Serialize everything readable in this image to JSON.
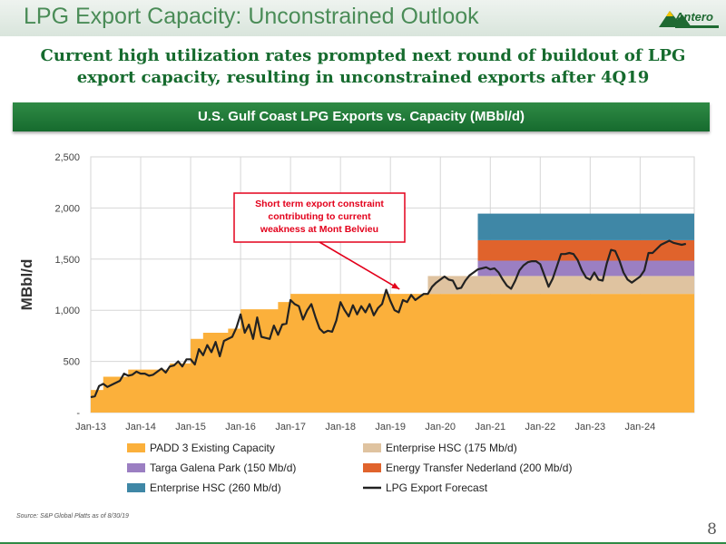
{
  "slide": {
    "title": "LPG Export Capacity: Unconstrained Outlook",
    "subtitle_line1": "Current high utilization rates prompted next round of buildout of LPG",
    "subtitle_line2": "export capacity, resulting in unconstrained exports after 4Q19",
    "banner": "U.S. Gulf Coast LPG Exports vs. Capacity (MBbl/d)",
    "source": "Source: S&P Global Platts as of 8/30/19",
    "page_number": "8",
    "logo_text": "Antero"
  },
  "chart_data": {
    "type": "area",
    "title": "U.S. Gulf Coast LPG Exports vs. Capacity (MBbl/d)",
    "ylabel": "MBbl/d",
    "xlabel": "",
    "x_ticks": [
      "Jan-13",
      "Jan-14",
      "Jan-15",
      "Jan-16",
      "Jan-17",
      "Jan-18",
      "Jan-19",
      "Jan-20",
      "Jan-21",
      "Jan-22",
      "Jan-23",
      "Jan-24"
    ],
    "y_ticks": [
      0,
      500,
      1000,
      1500,
      2000,
      2500
    ],
    "y_tick_labels": [
      "-",
      "500",
      "1,000",
      "1,500",
      "2,000",
      "2,500"
    ],
    "ylim": [
      0,
      2500
    ],
    "xlim": [
      "2013-01",
      "2025-02"
    ],
    "grid": true,
    "legend_position": "bottom",
    "legend_rows": [
      [
        {
          "name": "PADD 3 Existing Capacity",
          "color": "#fbb03b",
          "kind": "area"
        },
        {
          "name": "Enterprise HSC (175 Mb/d)",
          "color": "#dfc3a0",
          "kind": "area"
        }
      ],
      [
        {
          "name": "Targa Galena Park (150 Mb/d)",
          "color": "#9b7fc2",
          "kind": "area"
        },
        {
          "name": "Energy Transfer Nederland (200 Mb/d)",
          "color": "#e0632c",
          "kind": "area"
        }
      ],
      [
        {
          "name": "Enterprise HSC (260 Mb/d)",
          "color": "#3f87a6",
          "kind": "area"
        },
        {
          "name": "LPG Export Forecast",
          "color": "#222222",
          "kind": "line"
        }
      ]
    ],
    "annotation": {
      "lines": [
        "Short term export constraint",
        "contributing to current",
        "weakness at Mont Belvieu"
      ],
      "color": "#e3001b",
      "arrow_to": {
        "x": "2019-01",
        "y": 1100
      }
    },
    "capacity_steps": [
      {
        "x": "2013-01",
        "y": 220
      },
      {
        "x": "2013-04",
        "y": 350
      },
      {
        "x": "2013-10",
        "y": 420
      },
      {
        "x": "2014-08",
        "y": 480
      },
      {
        "x": "2015-01",
        "y": 720
      },
      {
        "x": "2015-04",
        "y": 780
      },
      {
        "x": "2015-10",
        "y": 820
      },
      {
        "x": "2016-01",
        "y": 1010
      },
      {
        "x": "2016-10",
        "y": 1080
      },
      {
        "x": "2017-01",
        "y": 1160
      },
      {
        "x": "2019-10",
        "y": 1160
      }
    ],
    "series": [
      {
        "name": "Enterprise HSC (175 Mb/d)",
        "color": "#dfc3a0",
        "start": "2019-10",
        "end": "2025-02",
        "from": 1160,
        "to": 1335
      },
      {
        "name": "Targa Galena Park (150 Mb/d)",
        "color": "#9b7fc2",
        "start": "2020-10",
        "end": "2025-02",
        "from": 1335,
        "to": 1485
      },
      {
        "name": "Energy Transfer Nederland (200 Mb/d)",
        "color": "#e0632c",
        "start": "2020-10",
        "end": "2025-02",
        "from": 1485,
        "to": 1685
      },
      {
        "name": "Enterprise HSC (260 Mb/d)",
        "color": "#3f87a6",
        "start": "2020-10",
        "end": "2025-02",
        "from": 1685,
        "to": 1945
      }
    ],
    "forecast_line": {
      "name": "LPG Export Forecast",
      "color": "#222222",
      "x": [
        "2013-01",
        "2013-02",
        "2013-03",
        "2013-04",
        "2013-05",
        "2013-06",
        "2013-07",
        "2013-08",
        "2013-09",
        "2013-10",
        "2013-11",
        "2013-12",
        "2014-01",
        "2014-02",
        "2014-03",
        "2014-04",
        "2014-05",
        "2014-06",
        "2014-07",
        "2014-08",
        "2014-09",
        "2014-10",
        "2014-11",
        "2014-12",
        "2015-01",
        "2015-02",
        "2015-03",
        "2015-04",
        "2015-05",
        "2015-06",
        "2015-07",
        "2015-08",
        "2015-09",
        "2015-10",
        "2015-11",
        "2015-12",
        "2016-01",
        "2016-02",
        "2016-03",
        "2016-04",
        "2016-05",
        "2016-06",
        "2016-07",
        "2016-08",
        "2016-09",
        "2016-10",
        "2016-11",
        "2016-12",
        "2017-01",
        "2017-02",
        "2017-03",
        "2017-04",
        "2017-05",
        "2017-06",
        "2017-07",
        "2017-08",
        "2017-09",
        "2017-10",
        "2017-11",
        "2017-12",
        "2018-01",
        "2018-02",
        "2018-03",
        "2018-04",
        "2018-05",
        "2018-06",
        "2018-07",
        "2018-08",
        "2018-09",
        "2018-10",
        "2018-11",
        "2018-12",
        "2019-01",
        "2019-02",
        "2019-03",
        "2019-04",
        "2019-05",
        "2019-06",
        "2019-07",
        "2019-08",
        "2019-09",
        "2019-10",
        "2019-11",
        "2019-12",
        "2020-01",
        "2020-02",
        "2020-03",
        "2020-04",
        "2020-05",
        "2020-06",
        "2020-07",
        "2020-08",
        "2020-09",
        "2020-10",
        "2020-11",
        "2020-12",
        "2021-01",
        "2021-02",
        "2021-03",
        "2021-04",
        "2021-05",
        "2021-06",
        "2021-07",
        "2021-08",
        "2021-09",
        "2021-10",
        "2021-11",
        "2021-12",
        "2022-01",
        "2022-02",
        "2022-03",
        "2022-04",
        "2022-05",
        "2022-06",
        "2022-07",
        "2022-08",
        "2022-09",
        "2022-10",
        "2022-11",
        "2022-12",
        "2023-01",
        "2023-02",
        "2023-03",
        "2023-04",
        "2023-05",
        "2023-06",
        "2023-07",
        "2023-08",
        "2023-09",
        "2023-10",
        "2023-11",
        "2023-12",
        "2024-01",
        "2024-02",
        "2024-03",
        "2024-04",
        "2024-05",
        "2024-06",
        "2024-07",
        "2024-08",
        "2024-09",
        "2024-10",
        "2024-11",
        "2024-12"
      ],
      "values": [
        150,
        160,
        260,
        280,
        250,
        270,
        290,
        310,
        380,
        360,
        370,
        400,
        380,
        380,
        360,
        370,
        400,
        430,
        390,
        450,
        460,
        500,
        450,
        520,
        520,
        470,
        620,
        560,
        660,
        590,
        690,
        550,
        700,
        720,
        740,
        830,
        960,
        780,
        860,
        720,
        930,
        740,
        730,
        720,
        850,
        760,
        860,
        870,
        1100,
        1060,
        1040,
        910,
        1000,
        1060,
        930,
        820,
        780,
        800,
        790,
        900,
        1080,
        1000,
        940,
        1050,
        960,
        1040,
        980,
        1060,
        950,
        1020,
        1060,
        1200,
        1090,
        1000,
        980,
        1100,
        1080,
        1150,
        1100,
        1130,
        1160,
        1160,
        1230,
        1270,
        1300,
        1330,
        1300,
        1290,
        1210,
        1220,
        1290,
        1340,
        1370,
        1400,
        1410,
        1420,
        1400,
        1410,
        1370,
        1300,
        1240,
        1210,
        1290,
        1390,
        1440,
        1470,
        1480,
        1480,
        1450,
        1340,
        1230,
        1310,
        1430,
        1550,
        1550,
        1560,
        1550,
        1490,
        1390,
        1320,
        1300,
        1370,
        1300,
        1290,
        1460,
        1590,
        1580,
        1490,
        1370,
        1300,
        1270,
        1300,
        1330,
        1390,
        1560,
        1560,
        1600,
        1640,
        1660,
        1680,
        1660,
        1650,
        1640,
        1650
      ]
    }
  }
}
